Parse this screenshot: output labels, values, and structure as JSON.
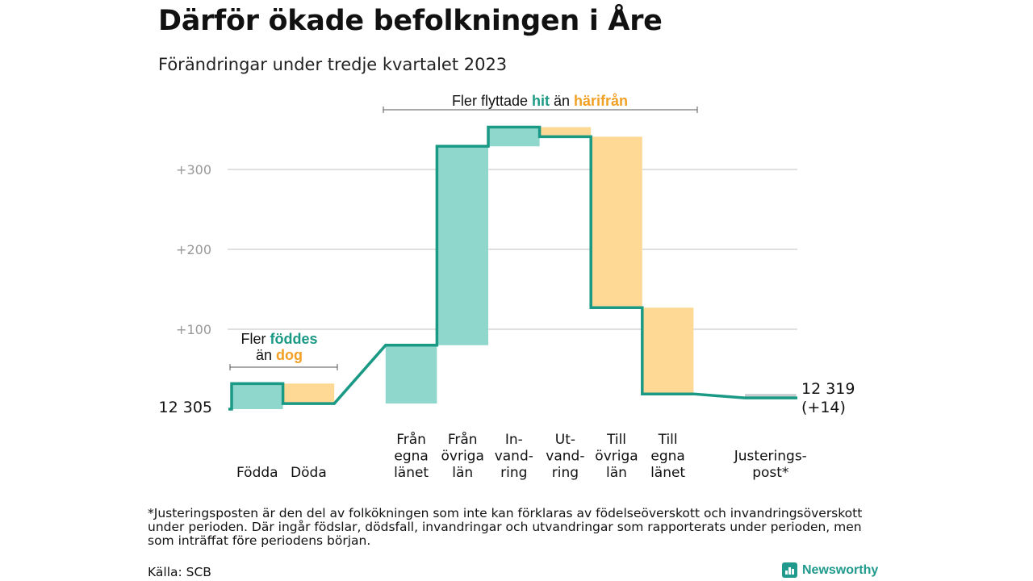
{
  "title": "Därför ökade befolkningen i Åre",
  "subtitle": "Förändringar under tredje kvartalet 2023",
  "colors": {
    "teal": "#1a9985",
    "teal_fill": "#8fd7cd",
    "orange": "#f2a024",
    "orange_fill": "#fdd995",
    "adjust_fill": "#c6ccd0",
    "grid": "#d6d6d6",
    "tick": "#999999"
  },
  "chart_data": {
    "type": "waterfall",
    "start_label": "12  305",
    "end_label": [
      "12 319",
      "(+14)"
    ],
    "y_ticks": [
      100,
      200,
      300
    ],
    "y_tick_labels": [
      "+100",
      "+200",
      "+300"
    ],
    "ylim": [
      0,
      355
    ],
    "grid": true,
    "steps": [
      {
        "label": [
          "Födda"
        ],
        "delta": 32,
        "kind": "gain"
      },
      {
        "label": [
          "Döda"
        ],
        "delta": -25,
        "kind": "loss"
      },
      {
        "label": [
          "Från",
          "egna",
          "länet"
        ],
        "delta": 73,
        "kind": "gain"
      },
      {
        "label": [
          "Från",
          "övriga",
          "län"
        ],
        "delta": 249,
        "kind": "gain"
      },
      {
        "label": [
          "In-",
          "vand-",
          "ring"
        ],
        "delta": 24,
        "kind": "gain"
      },
      {
        "label": [
          "Ut-",
          "vand-",
          "ring"
        ],
        "delta": -12,
        "kind": "loss"
      },
      {
        "label": [
          "Till",
          "övriga",
          "län"
        ],
        "delta": -214,
        "kind": "loss"
      },
      {
        "label": [
          "Till",
          "egna",
          "länet"
        ],
        "delta": -108,
        "kind": "loss"
      },
      {
        "label": [
          "Justerings-",
          "post*"
        ],
        "delta": -5,
        "kind": "adjust"
      }
    ],
    "annotations": [
      {
        "parts": [
          {
            "text": "Fler flyttade ",
            "style": "plain"
          },
          {
            "text": "hit",
            "style": "teal"
          },
          {
            "text": "  än ",
            "style": "plain"
          },
          {
            "text": "härifrån",
            "style": "orange"
          }
        ]
      },
      {
        "lines": [
          [
            {
              "text": "Fler ",
              "style": "plain"
            },
            {
              "text": "föddes",
              "style": "teal"
            }
          ],
          [
            {
              "text": "än ",
              "style": "plain"
            },
            {
              "text": "dog",
              "style": "orange"
            }
          ]
        ]
      }
    ]
  },
  "footnote": "*Justeringsposten är den del av folkökningen som inte kan förklaras av födelseöverskott och invandringsöverskott under perioden. Där ingår födslar, dödsfall, invandringar och utvandringar som rapporterats under perioden, men som inträffat före periodens början.",
  "source": "Källa: SCB",
  "brand": "Newsworthy",
  "brand_icon": "bar-chart-icon"
}
